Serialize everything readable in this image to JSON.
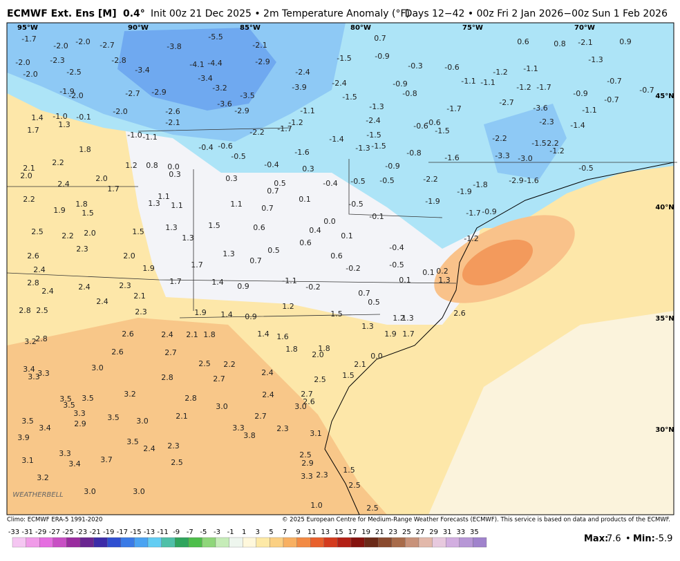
{
  "header": {
    "title_bold": "ECMWF Ext. Ens [M]",
    "resolution": "0.4°",
    "title_rest": "Init 00z 21 Dec 2025 • 2m Temperature Anomaly (°F)",
    "days": "Days 12−42 • 00z Fri 2 Jan 2026−00z Sun 1 Feb 2026"
  },
  "map": {
    "lon_labels": [
      "95°W",
      "90°W",
      "85°W",
      "80°W",
      "75°W",
      "70°W"
    ],
    "lat_labels": [
      "45°N",
      "40°N",
      "35°N",
      "30°N"
    ],
    "logo": "WEATHERBELL",
    "anomalies": [
      "-1.7",
      "-2.0",
      "-2.0",
      "-2.7",
      "-3.8",
      "-5.5",
      "-2.1",
      "0.7",
      "0.6",
      "0.8",
      "-2.1",
      "0.9",
      "-2.0",
      "-2.3",
      "-2.8",
      "-4.1",
      "-4.4",
      "-2.9",
      "-1.5",
      "-0.9",
      "-0.3",
      "-0.6",
      "-1.3",
      "-1.2",
      "-1.1",
      "-2.0",
      "-2.5",
      "-3.4",
      "-3.4",
      "-2.4",
      "-0.9",
      "-1.1",
      "-1.1",
      "-0.7",
      "-1.9",
      "-2.0",
      "-2.7",
      "-2.9",
      "-3.2",
      "-3.5",
      "-3.9",
      "-2.4",
      "-1.5",
      "-0.8",
      "-1.2",
      "-1.7",
      "-0.9",
      "-0.7",
      "-0.7",
      "-3.6",
      "-2.9",
      "-1.1",
      "-1.3",
      "-1.7",
      "-2.7",
      "-3.6",
      "-1.1",
      "-2.0",
      "-2.6",
      "-1.0",
      "-0.1",
      "1.4",
      "1.3",
      "-2.1",
      "-1.2",
      "-1.7",
      "-2.2",
      "-2.4",
      "-0.6",
      "-0.6",
      "-1.5",
      "-2.3",
      "-1.4",
      "1.7",
      "-1.0",
      "-1.1",
      "-1.4",
      "-1.5",
      "-2.2",
      "-0.4",
      "-0.6",
      "-0.5",
      "-1.3",
      "-1.5",
      "1.8",
      "-1.5",
      "2.2",
      "-1.2",
      "-1.6",
      "-0.8",
      "-1.6",
      "-3.3",
      "-3.0",
      "2.2",
      "1.2",
      "0.8",
      "0.0",
      "-0.4",
      "0.3",
      "-0.9",
      "2.1",
      "-0.5",
      "2.0",
      "0.3",
      "0.3",
      "2.0",
      "0.5",
      "-0.4",
      "-0.5",
      "-0.5",
      "-2.2",
      "-1.8",
      "-2.9",
      "-1.6",
      "2.4",
      "1.7",
      "0.7",
      "-1.9",
      "2.2",
      "1.8",
      "1.3",
      "1.1",
      "1.1",
      "0.1",
      "-0.5",
      "-1.9",
      "1.1",
      "1.9",
      "1.5",
      "0.7",
      "-1.7",
      "-0.9",
      "0.0",
      "-0.1",
      "2.5",
      "1.5",
      "1.3",
      "1.5",
      "0.6",
      "0.4",
      "2.2",
      "2.0",
      "0.1",
      "1.3",
      "-1.2",
      "2.3",
      "2.6",
      "2.0",
      "0.5",
      "0.6",
      "1.3",
      "-0.4",
      "0.7",
      "1.7",
      "0.6",
      "-0.5",
      "-0.2",
      "2.4",
      "1.9",
      "0.1",
      "0.2",
      "2.8",
      "2.4",
      "2.3",
      "1.7",
      "1.4",
      "0.9",
      "0.1",
      "1.3",
      "-1.1",
      "-0.2",
      "2.4",
      "2.4",
      "2.1",
      "0.7",
      "0.5",
      "1.2",
      "2.8",
      "2.5",
      "2.3",
      "1.9",
      "1.4",
      "0.9",
      "1.5",
      "1.2",
      "1.3",
      "2.6",
      "1.3",
      "2.6",
      "2.4",
      "2.1",
      "1.8",
      "1.4",
      "1.6",
      "1.9",
      "1.7",
      "3.2",
      "2.8",
      "1.8",
      "1.8",
      "2.0",
      "0.0",
      "2.6",
      "2.7",
      "3.4",
      "3.3",
      "3.3",
      "3.0",
      "2.5",
      "2.2",
      "2.1",
      "2.4",
      "1.5",
      "2.8",
      "2.7",
      "2.5",
      "3.2",
      "2.4",
      "2.7",
      "2.8",
      "2.6",
      "3.0",
      "3.0",
      "3.5",
      "3.5",
      "3.5",
      "3.3",
      "2.9",
      "3.5",
      "3.0",
      "2.1",
      "2.7",
      "3.5",
      "3.4",
      "3.3",
      "3.8",
      "2.3",
      "3.1",
      "3.9",
      "3.5",
      "2.4",
      "2.3",
      "3.3",
      "3.7",
      "3.4",
      "3.1",
      "2.5",
      "2.5",
      "2.9",
      "3.3",
      "2.3",
      "1.5",
      "3.2",
      "3.0",
      "3.0",
      "2.5",
      "1.0",
      "2.5"
    ]
  },
  "footer": {
    "climo": "Climo: ECMWF ERA-5 1991-2020",
    "copyright": "© 2025 European Centre for Medium-Range Weather Forecasts (ECMWF). This service is based on data and products of the ECMWF."
  },
  "colorbar": {
    "ticks": [
      "-33",
      "-31",
      "-29",
      "-27",
      "-25",
      "-23",
      "-21",
      "-19",
      "-17",
      "-15",
      "-13",
      "-11",
      "-9",
      "-7",
      "-5",
      "-3",
      "-1",
      "1",
      "3",
      "5",
      "7",
      "9",
      "11",
      "13",
      "15",
      "17",
      "19",
      "21",
      "23",
      "25",
      "27",
      "29",
      "31",
      "33",
      "35"
    ]
  },
  "stats": {
    "max_label": "Max:",
    "max": "7.6",
    "separator": "•",
    "min_label": "Min:",
    "min": "-5.9"
  }
}
